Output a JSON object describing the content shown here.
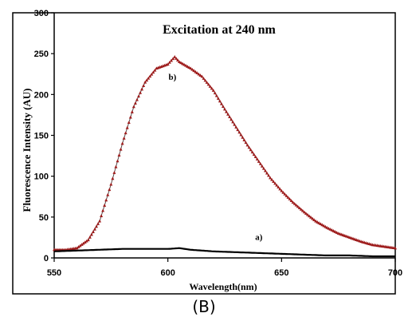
{
  "chart_data": {
    "type": "line",
    "title": "Excitation at 240 nm",
    "xlabel": "Wavelength(nm)",
    "ylabel": "Fluorescence Intensity (AU)",
    "panel_label": "(B)",
    "xlim": [
      550,
      700
    ],
    "ylim": [
      0,
      300
    ],
    "xticks": [
      "550",
      "600",
      "650",
      "700"
    ],
    "yticks": [
      "0",
      "50",
      "100",
      "150",
      "200",
      "250",
      "300"
    ],
    "grid": false,
    "legend": "none",
    "series": [
      {
        "name": "b)",
        "color": "#9e1b1b",
        "marker": "triangle",
        "label_at": [
          602,
          218
        ],
        "x": [
          550,
          555,
          560,
          565,
          570,
          575,
          580,
          585,
          590,
          595,
          600,
          603,
          605,
          610,
          615,
          620,
          625,
          630,
          635,
          640,
          645,
          650,
          655,
          660,
          665,
          670,
          675,
          680,
          685,
          690,
          695,
          700
        ],
        "y": [
          10,
          10,
          12,
          22,
          45,
          90,
          140,
          185,
          215,
          232,
          237,
          246,
          240,
          232,
          222,
          205,
          182,
          160,
          138,
          118,
          98,
          82,
          68,
          56,
          45,
          37,
          30,
          25,
          20,
          16,
          14,
          12
        ]
      },
      {
        "name": "a)",
        "color": "#000000",
        "marker": "none",
        "label_at": [
          640,
          22
        ],
        "x": [
          550,
          560,
          570,
          580,
          590,
          600,
          605,
          610,
          620,
          630,
          640,
          650,
          660,
          670,
          680,
          690,
          700
        ],
        "y": [
          8,
          9,
          10,
          11,
          11,
          11,
          12,
          10,
          8,
          7,
          6,
          5,
          4,
          3,
          3,
          2,
          2
        ]
      }
    ]
  }
}
